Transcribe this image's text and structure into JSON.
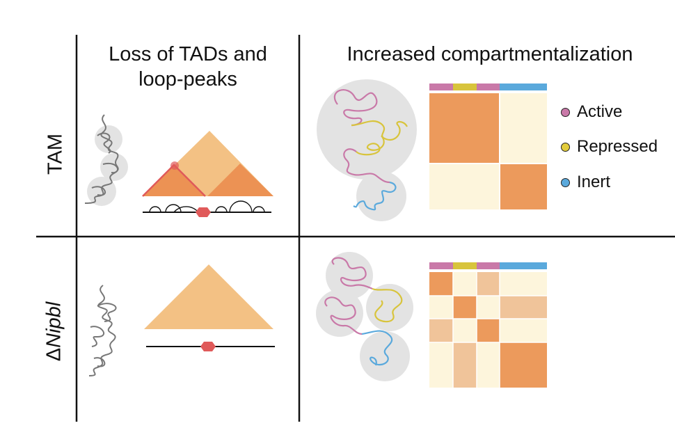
{
  "headers": {
    "col1": [
      "Loss of TADs and",
      "loop-peaks"
    ],
    "col2": "Increased compartmentalization"
  },
  "rows": {
    "row1": "TAM",
    "row2": {
      "delta": "Δ",
      "gene": "Nipbl"
    }
  },
  "legend": [
    {
      "label": "Active",
      "color": "#c979a8"
    },
    {
      "label": "Repressed",
      "color": "#e2cc3c"
    },
    {
      "label": "Inert",
      "color": "#5aa9dc"
    }
  ],
  "colors": {
    "tad_light": "#f3c184",
    "tad_dark": "#ec9254",
    "matrix_dark": "#ec9a5c",
    "matrix_mid": "#f0c49a",
    "matrix_light": "#fdf5dc",
    "cohesin": "#e05a5a",
    "chromatin": "#777777",
    "domain_circle": "#e3e3e3"
  },
  "matrices": {
    "tam": {
      "bar": [
        "active",
        "repressed",
        "active",
        "inert",
        "inert"
      ],
      "blocks": "two-compartments"
    },
    "nipbl": {
      "bar": [
        "active",
        "repressed",
        "active",
        "inert",
        "inert"
      ],
      "blocks": "checkerboard"
    }
  }
}
